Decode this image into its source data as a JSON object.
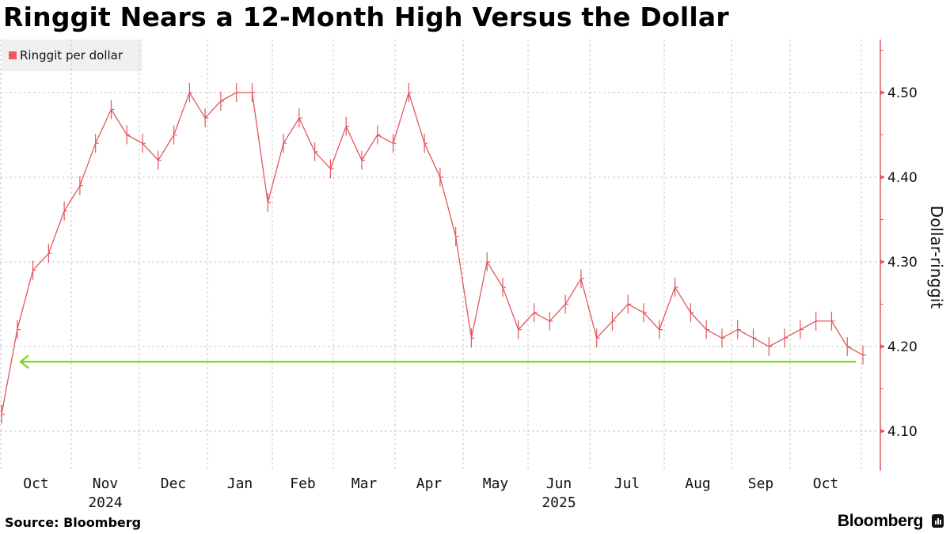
{
  "title": "Ringgit Nears a 12-Month High Versus the Dollar",
  "legend": {
    "label": "Ringgit per dollar",
    "color": "#f05a5a"
  },
  "source": "Source: Bloomberg",
  "brand": "Bloomberg",
  "colors": {
    "series": "#e0585e",
    "axis": "#e0585e",
    "marker_line": "#7ed321",
    "grid": "#c8c8c8"
  },
  "chart_data": {
    "type": "line",
    "title": "Ringgit Nears a 12-Month High Versus the Dollar",
    "series_name": "Ringgit per dollar",
    "xlabel": "",
    "ylabel": "Dollar-ringgit",
    "ylim": [
      4.05,
      4.56
    ],
    "yticks": [
      4.1,
      4.2,
      4.3,
      4.4,
      4.5
    ],
    "ytick_labels": [
      "4.10",
      "4.20",
      "4.30",
      "4.40",
      "4.50"
    ],
    "y_axis_position": "right",
    "grid": true,
    "legend_position": "top-left",
    "x_month_labels": [
      "Oct",
      "Nov",
      "Dec",
      "Jan",
      "Feb",
      "Mar",
      "Apr",
      "May",
      "Jun",
      "Jul",
      "Aug",
      "Sep",
      "Oct"
    ],
    "x_year_labels": [
      {
        "label": "2024",
        "under": "Nov"
      },
      {
        "label": "2025",
        "under": "Jun"
      }
    ],
    "annotation": {
      "type": "horizontal-arrow",
      "value": 4.182,
      "direction": "left",
      "color": "#7ed321"
    },
    "x": [
      "2024-10-01",
      "2024-10-08",
      "2024-10-15",
      "2024-10-22",
      "2024-10-29",
      "2024-11-05",
      "2024-11-12",
      "2024-11-19",
      "2024-11-26",
      "2024-12-03",
      "2024-12-10",
      "2024-12-17",
      "2024-12-24",
      "2024-12-31",
      "2025-01-07",
      "2025-01-14",
      "2025-01-21",
      "2025-01-28",
      "2025-02-04",
      "2025-02-11",
      "2025-02-18",
      "2025-02-25",
      "2025-03-04",
      "2025-03-11",
      "2025-03-18",
      "2025-03-25",
      "2025-04-01",
      "2025-04-08",
      "2025-04-15",
      "2025-04-22",
      "2025-04-29",
      "2025-05-06",
      "2025-05-13",
      "2025-05-20",
      "2025-05-27",
      "2025-06-03",
      "2025-06-10",
      "2025-06-17",
      "2025-06-24",
      "2025-07-01",
      "2025-07-08",
      "2025-07-15",
      "2025-07-22",
      "2025-07-29",
      "2025-08-05",
      "2025-08-12",
      "2025-08-19",
      "2025-08-26",
      "2025-09-02",
      "2025-09-09",
      "2025-09-16",
      "2025-09-23",
      "2025-09-30",
      "2025-10-07",
      "2025-10-14",
      "2025-10-21"
    ],
    "values": [
      4.12,
      4.22,
      4.29,
      4.31,
      4.36,
      4.39,
      4.44,
      4.48,
      4.45,
      4.44,
      4.42,
      4.45,
      4.5,
      4.47,
      4.49,
      4.5,
      4.5,
      4.37,
      4.44,
      4.47,
      4.43,
      4.41,
      4.46,
      4.42,
      4.45,
      4.44,
      4.5,
      4.44,
      4.4,
      4.33,
      4.21,
      4.3,
      4.27,
      4.22,
      4.24,
      4.23,
      4.25,
      4.28,
      4.21,
      4.23,
      4.25,
      4.24,
      4.22,
      4.27,
      4.24,
      4.22,
      4.21,
      4.22,
      4.21,
      4.2,
      4.21,
      4.22,
      4.23,
      4.23,
      4.2,
      4.19
    ]
  }
}
